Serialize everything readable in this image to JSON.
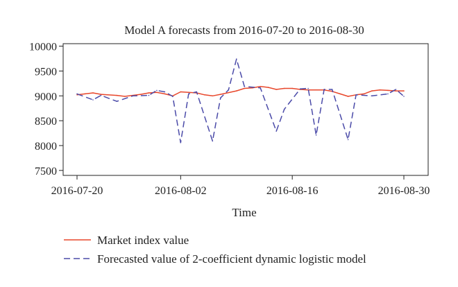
{
  "chart_data": {
    "type": "line",
    "title": "Model A forecasts from 2016-07-20 to 2016-08-30",
    "xlabel": "Time",
    "ylabel": "",
    "xlim": [
      "2016-07-20",
      "2016-08-30"
    ],
    "ylim": [
      7400,
      10050
    ],
    "x_ticks": [
      "2016-07-20",
      "2016-08-02",
      "2016-08-16",
      "2016-08-30"
    ],
    "y_ticks": [
      7500,
      8000,
      8500,
      9000,
      9500,
      10000
    ],
    "grid": false,
    "legend_position": "bottom",
    "series": [
      {
        "name": "Market index value",
        "color": "#e8462a",
        "style": "solid",
        "points": [
          [
            "2016-07-20",
            9020
          ],
          [
            "2016-07-21",
            9040
          ],
          [
            "2016-07-22",
            9060
          ],
          [
            "2016-07-23",
            9030
          ],
          [
            "2016-07-25",
            9010
          ],
          [
            "2016-07-26",
            8990
          ],
          [
            "2016-07-28",
            9030
          ],
          [
            "2016-07-29",
            9060
          ],
          [
            "2016-07-30",
            9070
          ],
          [
            "2016-07-31",
            9040
          ],
          [
            "2016-08-01",
            9000
          ],
          [
            "2016-08-02",
            9080
          ],
          [
            "2016-08-04",
            9060
          ],
          [
            "2016-08-05",
            9020
          ],
          [
            "2016-08-06",
            9000
          ],
          [
            "2016-08-07",
            9030
          ],
          [
            "2016-08-09",
            9100
          ],
          [
            "2016-08-10",
            9150
          ],
          [
            "2016-08-11",
            9160
          ],
          [
            "2016-08-12",
            9190
          ],
          [
            "2016-08-13",
            9170
          ],
          [
            "2016-08-14",
            9130
          ],
          [
            "2016-08-15",
            9150
          ],
          [
            "2016-08-16",
            9150
          ],
          [
            "2016-08-17",
            9130
          ],
          [
            "2016-08-18",
            9120
          ],
          [
            "2016-08-19",
            9120
          ],
          [
            "2016-08-20",
            9120
          ],
          [
            "2016-08-21",
            9090
          ],
          [
            "2016-08-22",
            9040
          ],
          [
            "2016-08-23",
            8990
          ],
          [
            "2016-08-24",
            9020
          ],
          [
            "2016-08-25",
            9040
          ],
          [
            "2016-08-26",
            9100
          ],
          [
            "2016-08-27",
            9120
          ],
          [
            "2016-08-28",
            9110
          ],
          [
            "2016-08-29",
            9100
          ],
          [
            "2016-08-30",
            9100
          ]
        ]
      },
      {
        "name": "Forecasted value of 2-coefficient dynamic logistic model",
        "color": "#4a4aa8",
        "style": "dashed",
        "points": [
          [
            "2016-07-20",
            9040
          ],
          [
            "2016-07-22",
            8920
          ],
          [
            "2016-07-23",
            9010
          ],
          [
            "2016-07-25",
            8890
          ],
          [
            "2016-07-27",
            9000
          ],
          [
            "2016-07-29",
            9010
          ],
          [
            "2016-07-30",
            9110
          ],
          [
            "2016-07-31",
            9080
          ],
          [
            "2016-08-01",
            8990
          ],
          [
            "2016-08-02",
            8060
          ],
          [
            "2016-08-03",
            9040
          ],
          [
            "2016-08-04",
            9080
          ],
          [
            "2016-08-06",
            8090
          ],
          [
            "2016-08-07",
            8960
          ],
          [
            "2016-08-08",
            9120
          ],
          [
            "2016-08-09",
            9740
          ],
          [
            "2016-08-10",
            9190
          ],
          [
            "2016-08-12",
            9160
          ],
          [
            "2016-08-14",
            8290
          ],
          [
            "2016-08-15",
            8730
          ],
          [
            "2016-08-17",
            9140
          ],
          [
            "2016-08-18",
            9150
          ],
          [
            "2016-08-19",
            8210
          ],
          [
            "2016-08-20",
            9130
          ],
          [
            "2016-08-21",
            9130
          ],
          [
            "2016-08-23",
            8120
          ],
          [
            "2016-08-24",
            9020
          ],
          [
            "2016-08-26",
            9000
          ],
          [
            "2016-08-28",
            9040
          ],
          [
            "2016-08-29",
            9130
          ],
          [
            "2016-08-30",
            8990
          ]
        ]
      }
    ]
  }
}
